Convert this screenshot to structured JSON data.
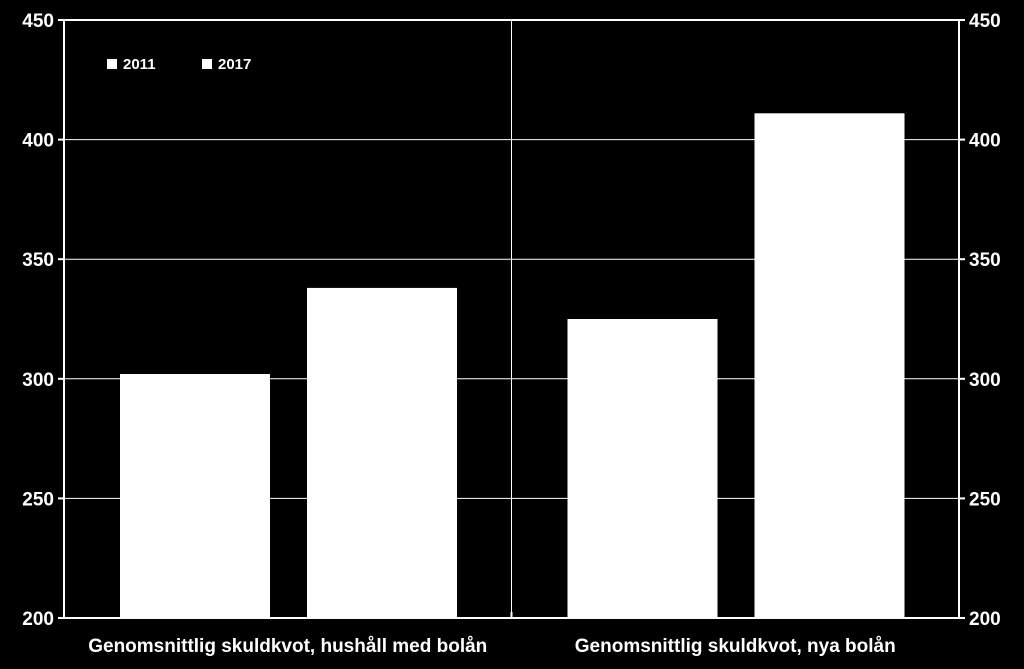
{
  "colors": {
    "background": "#000000",
    "bars": "#ffffff",
    "axis": "#ffffff",
    "grid": "#ffffff"
  },
  "chart_data": {
    "type": "bar",
    "title": "",
    "xlabel": "",
    "ylabel": "",
    "categories": [
      "Genomsnittlig skuldkvot, hushåll med bolån",
      "Genomsnittlig skuldkvot, nya bolån"
    ],
    "series": [
      {
        "name": "2011",
        "values": [
          302,
          325
        ]
      },
      {
        "name": "2017",
        "values": [
          338,
          411
        ]
      }
    ],
    "ylim": [
      200,
      450
    ],
    "yticks": [
      "200",
      "250",
      "300",
      "350",
      "400",
      "450"
    ],
    "secondary_yaxis": true,
    "grid": true,
    "legend": "top-left"
  }
}
